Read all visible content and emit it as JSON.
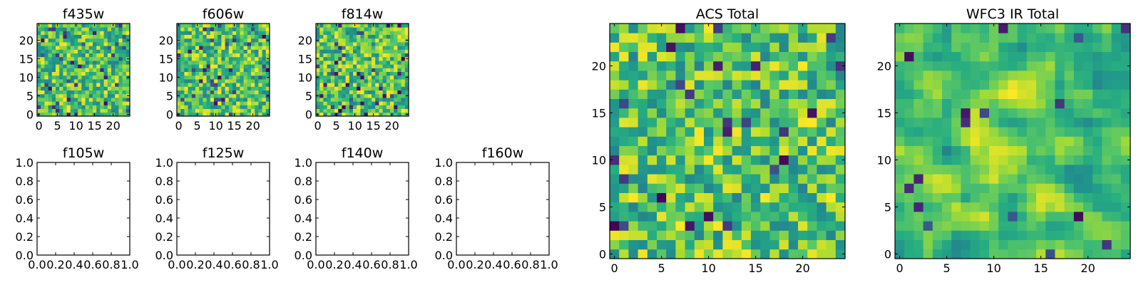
{
  "chart_data": [
    {
      "type": "heatmap",
      "title": "f435w",
      "grid_size": 25,
      "xlim": [
        -0.5,
        24.5
      ],
      "ylim": [
        -0.5,
        24.5
      ],
      "xticks": [
        0,
        5,
        10,
        15,
        20
      ],
      "yticks": [
        0,
        5,
        10,
        15,
        20
      ],
      "colormap": "viridis",
      "seed": 11,
      "mode": "noise",
      "dark_fraction": 0.05
    },
    {
      "type": "heatmap",
      "title": "f606w",
      "grid_size": 25,
      "xlim": [
        -0.5,
        24.5
      ],
      "ylim": [
        -0.5,
        24.5
      ],
      "xticks": [
        0,
        5,
        10,
        15,
        20
      ],
      "yticks": [
        0,
        5,
        10,
        15,
        20
      ],
      "colormap": "viridis",
      "seed": 23,
      "mode": "noise",
      "dark_fraction": 0.06
    },
    {
      "type": "heatmap",
      "title": "f814w",
      "grid_size": 25,
      "xlim": [
        -0.5,
        24.5
      ],
      "ylim": [
        -0.5,
        24.5
      ],
      "xticks": [
        0,
        5,
        10,
        15,
        20
      ],
      "yticks": [
        0,
        5,
        10,
        15,
        20
      ],
      "colormap": "viridis",
      "seed": 37,
      "mode": "noise",
      "dark_fraction": 0.06
    },
    {
      "type": "line",
      "title": "f105w",
      "xlim": [
        0.0,
        1.0
      ],
      "ylim": [
        0.0,
        1.0
      ],
      "xticks": [
        "0.0",
        "0.2",
        "0.4",
        "0.6",
        "0.8",
        "1.0"
      ],
      "yticks": [
        "0.0",
        "0.2",
        "0.4",
        "0.6",
        "0.8",
        "1.0"
      ],
      "series": []
    },
    {
      "type": "line",
      "title": "f125w",
      "xlim": [
        0.0,
        1.0
      ],
      "ylim": [
        0.0,
        1.0
      ],
      "xticks": [
        "0.0",
        "0.2",
        "0.4",
        "0.6",
        "0.8",
        "1.0"
      ],
      "yticks": [
        "0.0",
        "0.2",
        "0.4",
        "0.6",
        "0.8",
        "1.0"
      ],
      "series": []
    },
    {
      "type": "line",
      "title": "f140w",
      "xlim": [
        0.0,
        1.0
      ],
      "ylim": [
        0.0,
        1.0
      ],
      "xticks": [
        "0.0",
        "0.2",
        "0.4",
        "0.6",
        "0.8",
        "1.0"
      ],
      "yticks": [
        "0.0",
        "0.2",
        "0.4",
        "0.6",
        "0.8",
        "1.0"
      ],
      "series": []
    },
    {
      "type": "line",
      "title": "f160w",
      "xlim": [
        0.0,
        1.0
      ],
      "ylim": [
        0.0,
        1.0
      ],
      "xticks": [
        "0.0",
        "0.2",
        "0.4",
        "0.6",
        "0.8",
        "1.0"
      ],
      "yticks": [
        "0.0",
        "0.2",
        "0.4",
        "0.6",
        "0.8",
        "1.0"
      ],
      "series": []
    },
    {
      "type": "heatmap",
      "title": "ACS Total",
      "grid_size": 25,
      "xlim": [
        -0.5,
        24.5
      ],
      "ylim": [
        -0.5,
        24.5
      ],
      "xticks": [
        0,
        5,
        10,
        15,
        20
      ],
      "yticks": [
        0,
        5,
        10,
        15,
        20
      ],
      "colormap": "viridis",
      "seed": 53,
      "mode": "noise",
      "dark_fraction": 0.04
    },
    {
      "type": "heatmap",
      "title": "WFC3 IR Total",
      "grid_size": 25,
      "xlim": [
        -0.5,
        24.5
      ],
      "ylim": [
        -0.5,
        24.5
      ],
      "xticks": [
        0,
        5,
        10,
        15,
        20
      ],
      "yticks": [
        0,
        5,
        10,
        15,
        20
      ],
      "colormap": "viridis",
      "seed": 71,
      "mode": "smooth",
      "dark_fraction": 0.03
    }
  ]
}
